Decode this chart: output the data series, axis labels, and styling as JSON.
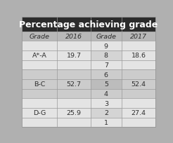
{
  "title": "Percentage achieving grade",
  "title_bg": "#2b2b2b",
  "title_color": "#ffffff",
  "title_fontsize": 9.0,
  "header_bg": "#b8b8b8",
  "font_color": "#2d2d2d",
  "col_headers": [
    "Grade",
    "2016",
    "Grade",
    "2017"
  ],
  "row_groups": [
    {
      "label": "A*-A",
      "value_2016": "19.7",
      "grades": [
        "9",
        "8",
        "7"
      ],
      "value_2017": "18.6"
    },
    {
      "label": "B-C",
      "value_2016": "52.7",
      "grades": [
        "6",
        "5",
        "4"
      ],
      "value_2017": "52.4"
    },
    {
      "label": "D-G",
      "value_2016": "25.9",
      "grades": [
        "3",
        "2",
        "1"
      ],
      "value_2017": "27.4"
    }
  ],
  "group_bgs": [
    "#e4e4e4",
    "#cccccc",
    "#e4e4e4"
  ],
  "grade_sub_bgs_even": [
    "#e4e4e4",
    "#d4d4d4",
    "#e4e4e4"
  ],
  "grade_sub_bgs_odd": [
    "#cccccc",
    "#bcbcbc",
    "#cccccc"
  ],
  "line_color": "#999999",
  "fig_bg": "#b0b0b0"
}
